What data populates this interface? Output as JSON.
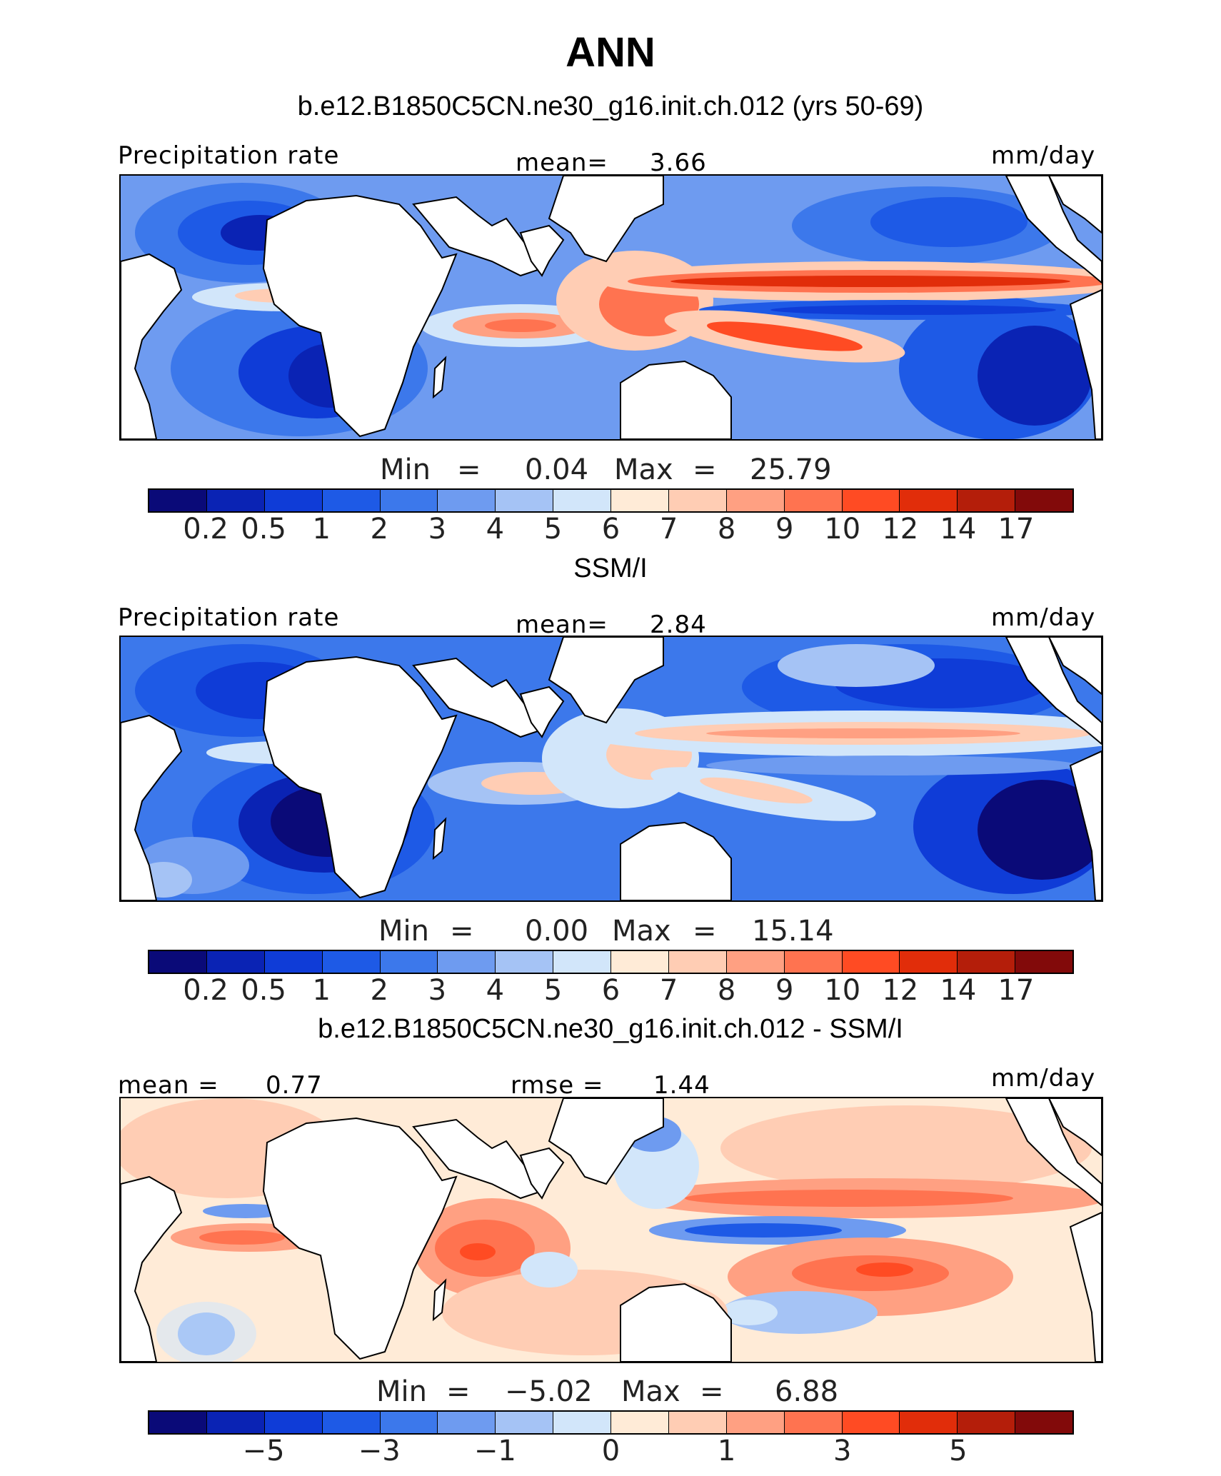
{
  "title": "ANN",
  "colors": [
    "#0a0a78",
    "#0a23b4",
    "#0f3cd7",
    "#1e5ae6",
    "#3c78eb",
    "#6e9bf0",
    "#a5c3f5",
    "#d2e6fa",
    "#ffebd7",
    "#ffcdb4",
    "#ffa082",
    "#ff7350",
    "#ff4b23",
    "#e12d0a",
    "#b41e0a",
    "#820a0a"
  ],
  "panels": [
    {
      "subtitle": "b.e12.B1850C5CN.ne30_g16.init.ch.012 (yrs 50-69)",
      "left_label": "Precipitation rate",
      "center_label": "mean=",
      "center_value": "3.66",
      "right_label": "mm/day",
      "min_label": "Min",
      "min_value": "0.04",
      "max_label": "Max",
      "max_value": "25.79",
      "ticks": [
        "0.2",
        "0.5",
        "1",
        "2",
        "3",
        "4",
        "5",
        "6",
        "7",
        "8",
        "9",
        "10",
        "12",
        "14",
        "17"
      ]
    },
    {
      "subtitle": "SSM/I",
      "left_label": "Precipitation rate",
      "center_label": "mean=",
      "center_value": "2.84",
      "right_label": "mm/day",
      "min_label": "Min",
      "min_value": "0.00",
      "max_label": "Max",
      "max_value": "15.14",
      "ticks": [
        "0.2",
        "0.5",
        "1",
        "2",
        "3",
        "4",
        "5",
        "6",
        "7",
        "8",
        "9",
        "10",
        "12",
        "14",
        "17"
      ]
    },
    {
      "subtitle": "b.e12.B1850C5CN.ne30_g16.init.ch.012 - SSM/I",
      "left_label": "mean =",
      "left_value": "0.77",
      "center_label": "rmse =",
      "center_value": "1.44",
      "right_label": "mm/day",
      "min_label": "Min",
      "min_value": "−5.02",
      "max_label": "Max",
      "max_value": "6.88",
      "ticks": [
        "−5",
        "−3",
        "−1",
        "0",
        "1",
        "3",
        "5"
      ]
    }
  ]
}
